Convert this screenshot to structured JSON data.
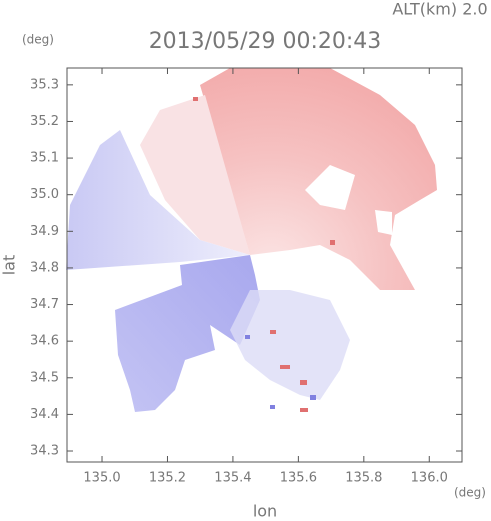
{
  "chart_data": {
    "type": "radar",
    "altitude_label": "ALT(km) 2.0",
    "title": "2013/05/29 00:20:43",
    "y_unit": "(deg)",
    "x_unit": "(deg)",
    "ylabel": "lat",
    "xlabel": "lon",
    "xlim": [
      134.893,
      136.1
    ],
    "ylim": [
      34.27,
      35.346
    ],
    "xticks": [
      {
        "value": 135.0,
        "label": "135.0"
      },
      {
        "value": 135.2,
        "label": "135.2"
      },
      {
        "value": 135.4,
        "label": "135.4"
      },
      {
        "value": 135.6,
        "label": "135.6"
      },
      {
        "value": 135.8,
        "label": "135.8"
      },
      {
        "value": 136.0,
        "label": "136.0"
      }
    ],
    "yticks": [
      {
        "value": 35.3,
        "label": "35.3"
      },
      {
        "value": 35.2,
        "label": "35.2"
      },
      {
        "value": 35.1,
        "label": "35.1"
      },
      {
        "value": 35.0,
        "label": "35.0"
      },
      {
        "value": 34.9,
        "label": "34.9"
      },
      {
        "value": 34.8,
        "label": "34.8"
      },
      {
        "value": 34.7,
        "label": "34.7"
      },
      {
        "value": 34.6,
        "label": "34.6"
      },
      {
        "value": 34.5,
        "label": "34.5"
      },
      {
        "value": 34.4,
        "label": "34.4"
      },
      {
        "value": 34.3,
        "label": "34.3"
      }
    ]
  }
}
